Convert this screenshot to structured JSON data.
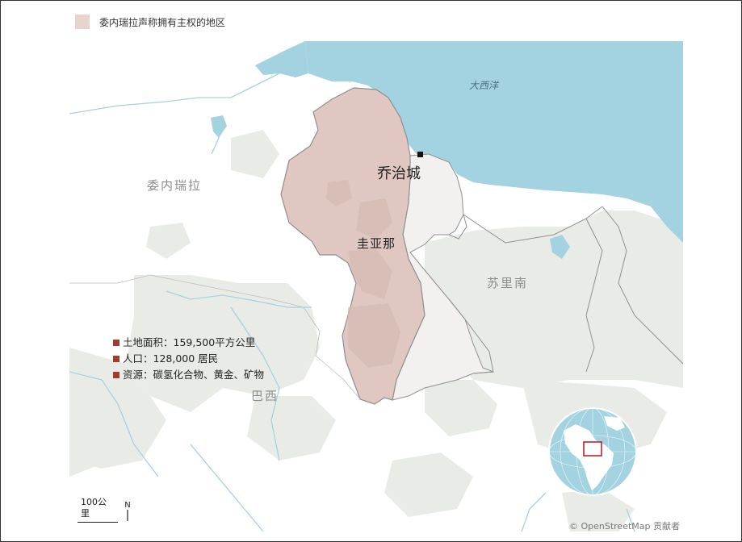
{
  "legend": {
    "label": "委内瑞拉声称拥有主权的地区",
    "swatch_color": "#e8d3cf"
  },
  "map": {
    "labels": {
      "venezuela": "委内瑞拉",
      "guyana": "圭亚那",
      "suriname": "苏里南",
      "brazil": "巴西",
      "ocean": "大西洋",
      "capital": "乔治城"
    },
    "colors": {
      "ocean": "#a3d3e0",
      "land": "#ffffff",
      "forest": "#e8ece5",
      "claimed": "#e0c7c1",
      "guyana_fill": "#f2f1f0",
      "border": "#8f8f8f",
      "river": "#a3d3e0"
    }
  },
  "facts": [
    "土地面积：159,500平方公里",
    "人口：128,000 居民",
    "资源：碳氢化合物、黄金、矿物"
  ],
  "scale": {
    "label": "100公里",
    "north": "N"
  },
  "credit": "© OpenStreetMap 贡献者",
  "inset": {
    "icon": "globe-locator",
    "highlight_color": "#c0222a"
  }
}
